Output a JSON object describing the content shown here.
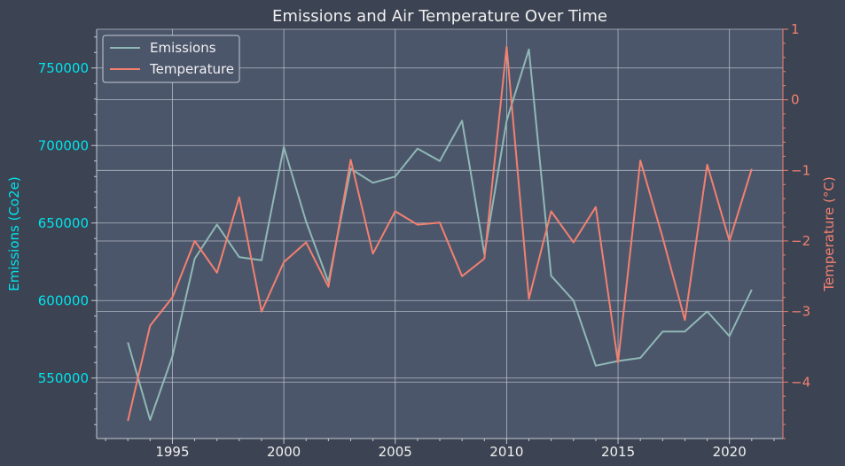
{
  "chart_data": {
    "type": "line",
    "title": "Emissions and Air Temperature Over Time",
    "xlabel": "",
    "ylabel_left": "Emissions (Co2e)",
    "ylabel_right": "Temperature (°C)",
    "x": [
      1993,
      1994,
      1995,
      1996,
      1997,
      1998,
      1999,
      2000,
      2001,
      2002,
      2003,
      2004,
      2005,
      2006,
      2007,
      2008,
      2009,
      2010,
      2011,
      2012,
      2013,
      2014,
      2015,
      2016,
      2017,
      2018,
      2019,
      2020,
      2021
    ],
    "series": [
      {
        "name": "Emissions",
        "axis": "left",
        "color": "#8fb8b5",
        "values": [
          573000,
          523000,
          564000,
          627000,
          649000,
          628000,
          626000,
          699000,
          651000,
          612000,
          685000,
          676000,
          680000,
          698000,
          690000,
          716000,
          630000,
          716000,
          762000,
          616000,
          600000,
          558000,
          561000,
          563000,
          580000,
          580000,
          593000,
          577000,
          607000
        ]
      },
      {
        "name": "Temperature",
        "axis": "right",
        "color": "#f28070",
        "values": [
          -4.55,
          -3.2,
          -2.8,
          -2.0,
          -2.45,
          -1.38,
          -3.0,
          -2.3,
          -2.02,
          -2.65,
          -0.85,
          -2.18,
          -1.58,
          -1.77,
          -1.74,
          -2.5,
          -2.25,
          0.75,
          -2.82,
          -1.58,
          -2.02,
          -1.52,
          -3.72,
          -0.86,
          -1.95,
          -3.12,
          -0.92,
          -2.0,
          -0.98
        ]
      }
    ],
    "xlim": [
      1991.6,
      2022.4
    ],
    "ylim_left": [
      511000,
      775000
    ],
    "ylim_right": [
      -4.8,
      1.0
    ],
    "xticks": [
      1995,
      2000,
      2005,
      2010,
      2015,
      2020
    ],
    "yticks_left": [
      550000,
      600000,
      650000,
      700000,
      750000
    ],
    "yticks_right": [
      -4,
      -3,
      -2,
      -1,
      0,
      1
    ],
    "grid": true,
    "legend_position": "top-left",
    "colors": {
      "background": "#3c4352",
      "plot_background": "#4c566b",
      "grid": "#c4c9d3",
      "left_axis": "#00e5ee",
      "right_axis": "#f28070",
      "text": "#f0f0f0"
    }
  }
}
